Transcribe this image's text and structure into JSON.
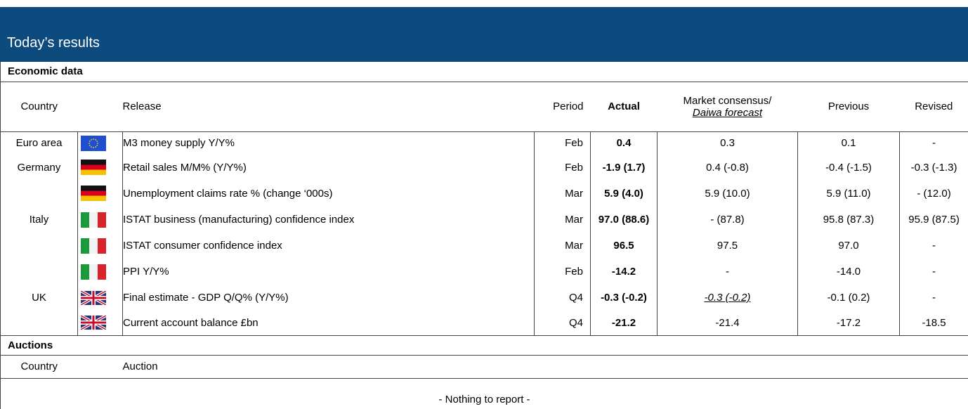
{
  "header": {
    "title": "Today’s results"
  },
  "economic": {
    "heading": "Economic data",
    "columns": {
      "country": "Country",
      "release": "Release",
      "period": "Period",
      "actual": "Actual",
      "consensus": "Market consensus/",
      "forecast": "Daiwa forecast",
      "previous": "Previous",
      "revised": "Revised"
    },
    "rows": [
      {
        "country": "Euro area",
        "release": "M3 money supply Y/Y%",
        "period": "Feb",
        "actual": "0.4",
        "consensus": "0.3",
        "previous": "0.1",
        "revised": "-"
      },
      {
        "country": "Germany",
        "release": "Retail sales M/M% (Y/Y%)",
        "period": "Feb",
        "actual": "-1.9 (1.7)",
        "consensus": "0.4 (-0.8)",
        "previous": "-0.4 (-1.5)",
        "revised": "-0.3 (-1.3)"
      },
      {
        "release": "Unemployment claims rate % (change ‘000s)",
        "period": "Mar",
        "actual": "5.9 (4.0)",
        "consensus": "5.9 (10.0)",
        "previous": "5.9 (11.0)",
        "revised": "- (12.0)"
      },
      {
        "country": "Italy",
        "release": "ISTAT business (manufacturing) confidence index",
        "period": "Mar",
        "actual": "97.0 (88.6)",
        "consensus": "- (87.8)",
        "previous": "95.8 (87.3)",
        "revised": "95.9 (87.5)"
      },
      {
        "release": "ISTAT consumer confidence index",
        "period": "Mar",
        "actual": "96.5",
        "consensus": "97.5",
        "previous": "97.0",
        "revised": "-"
      },
      {
        "release": "PPI Y/Y%",
        "period": "Feb",
        "actual": "-14.2",
        "consensus": "-",
        "previous": "-14.0",
        "revised": "-"
      },
      {
        "country": "UK",
        "release": "Final estimate - GDP Q/Q% (Y/Y%)",
        "period": "Q4",
        "actual": "-0.3 (-0.2)",
        "consensus": "-0.3 (-0.2)",
        "previous": "-0.1 (0.2)",
        "revised": "-"
      },
      {
        "release": "Current account balance £bn",
        "period": "Q4",
        "actual": "-21.2",
        "consensus": "-21.4",
        "previous": "-17.2",
        "revised": "-18.5"
      }
    ]
  },
  "auctions": {
    "heading": "Auctions",
    "columns": {
      "country": "Country",
      "auction": "Auction"
    },
    "note": "- Nothing to report -"
  }
}
